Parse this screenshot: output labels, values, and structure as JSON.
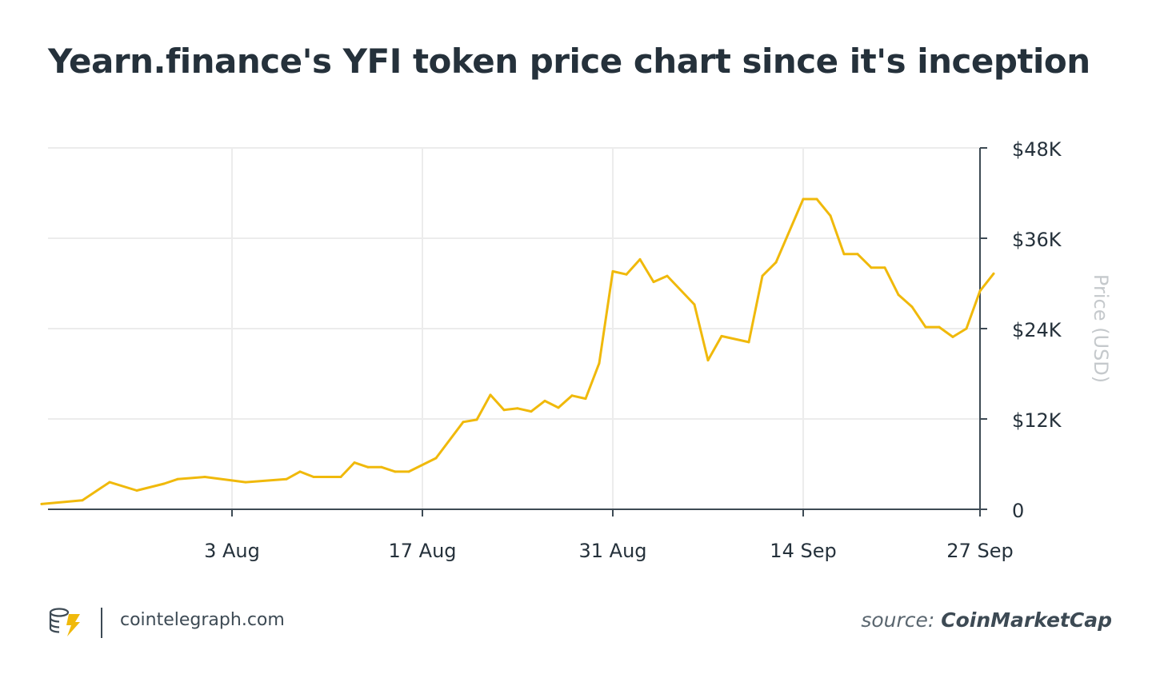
{
  "header": {
    "title": "Yearn.finance's YFI token price chart since it's inception"
  },
  "footer": {
    "brand": "cointelegraph.com",
    "source_label": "source:",
    "source_name": "CoinMarketCap"
  },
  "colors": {
    "line": "#f0b90b",
    "text": "#25313b",
    "axis": "#3d4a54",
    "grid": "#ececec",
    "axis_title": "#c5c9cc"
  },
  "chart_data": {
    "type": "line",
    "title": "Yearn.finance's YFI token price chart since it's inception",
    "xlabel": "",
    "ylabel": "Price (USD)",
    "ylim": [
      0,
      48000
    ],
    "y_ticks": [
      0,
      12000,
      24000,
      36000,
      48000
    ],
    "y_tick_labels": [
      "0",
      "$12K",
      "$24K",
      "$36K",
      "$48K"
    ],
    "y_axis_side": "right",
    "x_ticks": [
      "3 Aug",
      "17 Aug",
      "31 Aug",
      "14 Sep",
      "27 Sep"
    ],
    "grid": true,
    "legend": "none",
    "series": [
      {
        "points": [
          [
            "2020-07-20",
            700
          ],
          [
            "2020-07-23",
            1200
          ],
          [
            "2020-07-25",
            3600
          ],
          [
            "2020-07-27",
            2500
          ],
          [
            "2020-07-29",
            3400
          ],
          [
            "2020-07-30",
            4000
          ],
          [
            "2020-08-01",
            4300
          ],
          [
            "2020-08-04",
            3600
          ],
          [
            "2020-08-07",
            4000
          ],
          [
            "2020-08-08",
            5000
          ],
          [
            "2020-08-09",
            4300
          ],
          [
            "2020-08-11",
            4300
          ],
          [
            "2020-08-12",
            6200
          ],
          [
            "2020-08-13",
            5600
          ],
          [
            "2020-08-14",
            5600
          ],
          [
            "2020-08-15",
            5000
          ],
          [
            "2020-08-16",
            5000
          ],
          [
            "2020-08-18",
            6800
          ],
          [
            "2020-08-20",
            11600
          ],
          [
            "2020-08-21",
            11900
          ],
          [
            "2020-08-22",
            15200
          ],
          [
            "2020-08-23",
            13200
          ],
          [
            "2020-08-24",
            13400
          ],
          [
            "2020-08-25",
            13000
          ],
          [
            "2020-08-26",
            14400
          ],
          [
            "2020-08-27",
            13500
          ],
          [
            "2020-08-28",
            15100
          ],
          [
            "2020-08-29",
            14700
          ],
          [
            "2020-08-30",
            19400
          ],
          [
            "2020-08-31",
            31600
          ],
          [
            "2020-09-01",
            31200
          ],
          [
            "2020-09-02",
            33200
          ],
          [
            "2020-09-03",
            30200
          ],
          [
            "2020-09-04",
            31000
          ],
          [
            "2020-09-06",
            27200
          ],
          [
            "2020-09-07",
            19800
          ],
          [
            "2020-09-08",
            23000
          ],
          [
            "2020-09-10",
            22200
          ],
          [
            "2020-09-11",
            31000
          ],
          [
            "2020-09-12",
            32800
          ],
          [
            "2020-09-14",
            41200
          ],
          [
            "2020-09-15",
            41200
          ],
          [
            "2020-09-16",
            39000
          ],
          [
            "2020-09-17",
            33900
          ],
          [
            "2020-09-18",
            33900
          ],
          [
            "2020-09-19",
            32100
          ],
          [
            "2020-09-20",
            32100
          ],
          [
            "2020-09-21",
            28500
          ],
          [
            "2020-09-22",
            26900
          ],
          [
            "2020-09-23",
            24200
          ],
          [
            "2020-09-24",
            24200
          ],
          [
            "2020-09-25",
            22900
          ],
          [
            "2020-09-26",
            24000
          ],
          [
            "2020-09-27",
            29000
          ],
          [
            "2020-09-28",
            31300
          ]
        ]
      }
    ]
  }
}
